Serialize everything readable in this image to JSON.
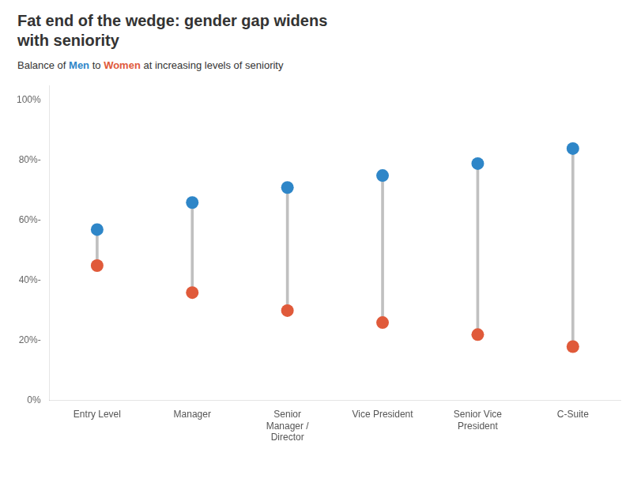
{
  "chart_data": {
    "type": "dumbbell",
    "title": [
      "Fat end of the wedge: gender gap widens",
      "with seniority"
    ],
    "subtitle": "Balance of Men to Women at increasing levels of seniority",
    "categories": [
      "Entry Level",
      "Manager",
      "Senior\nManager /\nDirector",
      "Vice President",
      "Senior Vice\nPresident",
      "C-Suite"
    ],
    "series": [
      {
        "name": "Men",
        "color": "#2e86c8",
        "values": [
          0.57,
          0.66,
          0.71,
          0.75,
          0.79,
          0.84
        ]
      },
      {
        "name": "Women",
        "color": "#e05a3a",
        "values": [
          0.45,
          0.36,
          0.3,
          0.26,
          0.22,
          0.18
        ]
      }
    ],
    "color": "#c0c0c0",
    "ylim": [
      0.0,
      1.05
    ],
    "yticks": [
      {
        "value": 0.0,
        "label": "0%"
      },
      {
        "value": 0.2,
        "label": "20%-"
      },
      {
        "value": 0.4,
        "label": "40%-"
      },
      {
        "value": 0.6,
        "label": "60%-"
      },
      {
        "value": 0.8,
        "label": "80%-"
      },
      {
        "value": 1.0,
        "label": "100%"
      }
    ],
    "grid": false
  }
}
